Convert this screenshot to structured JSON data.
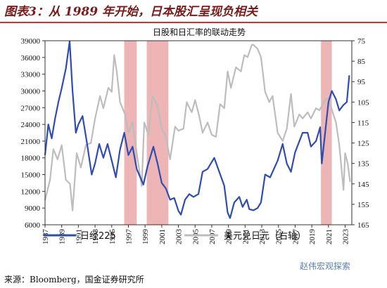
{
  "figure": {
    "title": "图表3：从 1989 年开始，日本股汇呈现负相关",
    "source": "来源：Bloomberg，国金证券研究所",
    "watermark": "赵伟宏观探索"
  },
  "colors": {
    "nikkei": "#2f4db0",
    "usdjpy": "#bdbdbd",
    "band": "#e8a0a0",
    "title": "#7a1a1a",
    "rule": "#c0392b"
  },
  "chart_data": {
    "type": "line",
    "title": "日股和日汇率的联动走势",
    "x_ticks": [
      "1987",
      "1989",
      "1991",
      "1993",
      "1995",
      "1997",
      "1999",
      "2001",
      "2003",
      "2005",
      "2007",
      "2009",
      "2011",
      "2013",
      "2015",
      "2017",
      "2019",
      "2021",
      "2023"
    ],
    "xlim": [
      1987,
      2023.8
    ],
    "left_axis": {
      "min": 6000,
      "max": 39000,
      "ticks": [
        6000,
        9000,
        12000,
        15000,
        18000,
        21000,
        24000,
        27000,
        30000,
        33000,
        36000,
        39000
      ]
    },
    "right_axis": {
      "min": 75,
      "max": 165,
      "inverted": true,
      "ticks": [
        75,
        85,
        95,
        105,
        115,
        125,
        135,
        145,
        155,
        165
      ]
    },
    "highlight_periods": [
      [
        1996.5,
        1998.0
      ],
      [
        1999.2,
        2001.8
      ],
      [
        2020.1,
        2021.4
      ]
    ],
    "series": [
      {
        "name": "日经225",
        "axis": "left",
        "points": [
          [
            1987.0,
            18500
          ],
          [
            1987.4,
            24000
          ],
          [
            1987.8,
            21500
          ],
          [
            1988.2,
            25000
          ],
          [
            1988.6,
            28000
          ],
          [
            1989.0,
            30500
          ],
          [
            1989.5,
            34000
          ],
          [
            1989.95,
            38900
          ],
          [
            1990.3,
            30000
          ],
          [
            1990.7,
            22500
          ],
          [
            1991.0,
            24000
          ],
          [
            1991.5,
            25500
          ],
          [
            1992.0,
            21000
          ],
          [
            1992.6,
            15000
          ],
          [
            1993.0,
            17000
          ],
          [
            1993.5,
            20500
          ],
          [
            1994.0,
            18000
          ],
          [
            1994.5,
            20500
          ],
          [
            1995.0,
            17500
          ],
          [
            1995.5,
            14500
          ],
          [
            1996.0,
            19500
          ],
          [
            1996.5,
            22500
          ],
          [
            1997.0,
            18500
          ],
          [
            1997.5,
            20000
          ],
          [
            1998.0,
            16000
          ],
          [
            1998.8,
            13200
          ],
          [
            1999.3,
            16500
          ],
          [
            2000.0,
            20000
          ],
          [
            2000.5,
            17000
          ],
          [
            2001.0,
            13500
          ],
          [
            2001.5,
            12500
          ],
          [
            2002.0,
            10500
          ],
          [
            2002.5,
            10800
          ],
          [
            2003.0,
            8500
          ],
          [
            2003.3,
            7800
          ],
          [
            2003.8,
            10500
          ],
          [
            2004.3,
            11500
          ],
          [
            2004.8,
            11000
          ],
          [
            2005.4,
            11500
          ],
          [
            2005.9,
            15500
          ],
          [
            2006.5,
            16000
          ],
          [
            2007.3,
            18000
          ],
          [
            2007.9,
            15500
          ],
          [
            2008.5,
            13000
          ],
          [
            2008.9,
            8200
          ],
          [
            2009.2,
            7200
          ],
          [
            2009.7,
            10000
          ],
          [
            2010.3,
            11000
          ],
          [
            2010.7,
            9200
          ],
          [
            2011.2,
            10500
          ],
          [
            2011.5,
            8800
          ],
          [
            2012.0,
            8600
          ],
          [
            2012.5,
            9000
          ],
          [
            2012.9,
            10000
          ],
          [
            2013.4,
            15000
          ],
          [
            2014.0,
            14500
          ],
          [
            2014.9,
            17500
          ],
          [
            2015.5,
            20500
          ],
          [
            2016.0,
            17000
          ],
          [
            2016.5,
            15500
          ],
          [
            2017.0,
            19000
          ],
          [
            2017.9,
            22500
          ],
          [
            2018.5,
            22500
          ],
          [
            2018.9,
            20000
          ],
          [
            2019.5,
            21000
          ],
          [
            2020.0,
            23500
          ],
          [
            2020.2,
            17000
          ],
          [
            2020.6,
            22500
          ],
          [
            2021.0,
            28000
          ],
          [
            2021.4,
            30000
          ],
          [
            2021.9,
            28500
          ],
          [
            2022.3,
            26500
          ],
          [
            2022.8,
            27500
          ],
          [
            2023.2,
            28000
          ],
          [
            2023.5,
            32800
          ]
        ]
      },
      {
        "name": "美元兑日元（右轴）",
        "axis": "right",
        "points": [
          [
            1987.0,
            153
          ],
          [
            1987.6,
            143
          ],
          [
            1988.0,
            128
          ],
          [
            1988.5,
            133
          ],
          [
            1989.0,
            126
          ],
          [
            1989.5,
            143
          ],
          [
            1990.0,
            145
          ],
          [
            1990.3,
            158
          ],
          [
            1990.8,
            130
          ],
          [
            1991.3,
            137
          ],
          [
            1991.9,
            126
          ],
          [
            1992.5,
            125
          ],
          [
            1993.0,
            113
          ],
          [
            1993.6,
            102
          ],
          [
            1994.0,
            108
          ],
          [
            1994.6,
            98
          ],
          [
            1995.0,
            100
          ],
          [
            1995.3,
            82
          ],
          [
            1995.6,
            90
          ],
          [
            1996.0,
            105
          ],
          [
            1996.6,
            111
          ],
          [
            1997.0,
            120
          ],
          [
            1997.5,
            115
          ],
          [
            1998.0,
            130
          ],
          [
            1998.6,
            146
          ],
          [
            1998.9,
            115
          ],
          [
            1999.4,
            121
          ],
          [
            1999.9,
            102
          ],
          [
            2000.5,
            107
          ],
          [
            2001.0,
            118
          ],
          [
            2001.5,
            122
          ],
          [
            2002.0,
            133
          ],
          [
            2002.6,
            117
          ],
          [
            2003.0,
            119
          ],
          [
            2003.6,
            118
          ],
          [
            2004.0,
            105
          ],
          [
            2004.6,
            110
          ],
          [
            2005.0,
            104
          ],
          [
            2005.5,
            112
          ],
          [
            2005.9,
            120
          ],
          [
            2006.5,
            115
          ],
          [
            2007.0,
            121
          ],
          [
            2007.5,
            122
          ],
          [
            2008.0,
            106
          ],
          [
            2008.5,
            108
          ],
          [
            2008.9,
            90
          ],
          [
            2009.3,
            98
          ],
          [
            2009.9,
            88
          ],
          [
            2010.5,
            90
          ],
          [
            2010.9,
            82
          ],
          [
            2011.3,
            83
          ],
          [
            2011.8,
            77
          ],
          [
            2012.0,
            77
          ],
          [
            2012.5,
            79
          ],
          [
            2012.9,
            83
          ],
          [
            2013.4,
            100
          ],
          [
            2013.9,
            105
          ],
          [
            2014.3,
            102
          ],
          [
            2014.9,
            120
          ],
          [
            2015.5,
            124
          ],
          [
            2016.0,
            118
          ],
          [
            2016.5,
            101
          ],
          [
            2016.9,
            117
          ],
          [
            2017.5,
            111
          ],
          [
            2017.9,
            113
          ],
          [
            2018.5,
            110
          ],
          [
            2018.9,
            113
          ],
          [
            2019.5,
            108
          ],
          [
            2019.9,
            109
          ],
          [
            2020.2,
            107
          ],
          [
            2020.6,
            104
          ],
          [
            2021.0,
            103
          ],
          [
            2021.5,
            110
          ],
          [
            2021.9,
            115
          ],
          [
            2022.3,
            126
          ],
          [
            2022.8,
            148
          ],
          [
            2023.0,
            130
          ],
          [
            2023.3,
            135
          ],
          [
            2023.6,
            144
          ]
        ]
      }
    ]
  }
}
